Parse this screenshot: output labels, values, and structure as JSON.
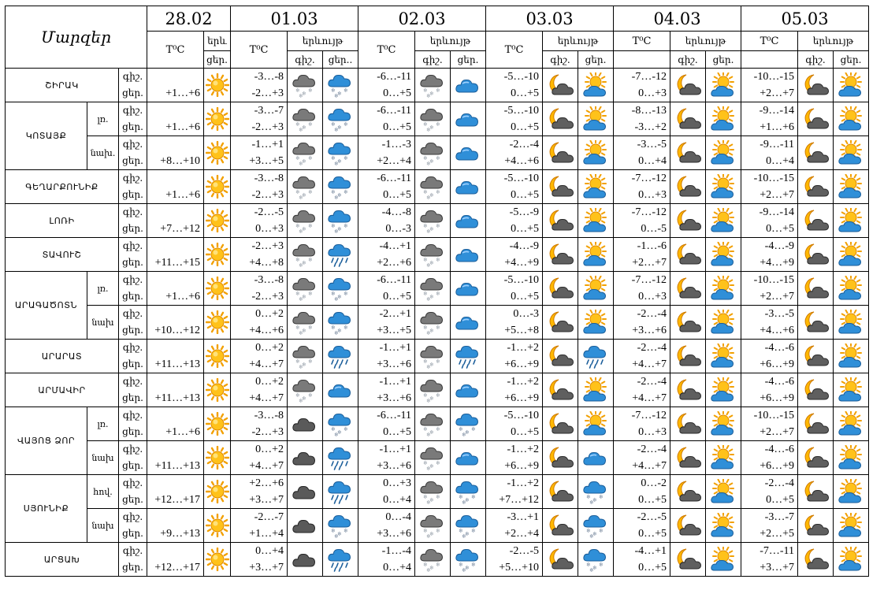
{
  "header": {
    "region_label": "Մարզեր",
    "dates": [
      "28.02",
      "01.03",
      "02.03",
      "03.03",
      "04.03",
      "05.03"
    ],
    "temp_label": "T⁰C",
    "phen_label": "երևույթ",
    "phen_label_short": "երև",
    "night": "գիշ.",
    "day": "ցեր.",
    "night_short": "գիշ.",
    "day_short": "ցեր.."
  },
  "row_labels": {
    "night": "գիշ.",
    "day": "ցեր."
  },
  "rows": [
    {
      "region": "ՇԻՐԱԿ",
      "sub": "",
      "d0": "+1…+6",
      "d1n": "-3…-8",
      "d1d": "-2…+3",
      "d2n": "-6…-11",
      "d2d": "0…+5",
      "d3n": "-5…-10",
      "d3d": "0…+5",
      "d4n": "-7…-12",
      "d4d": "0…+3",
      "d5n": "-10…-15",
      "d5d": "+2…+7"
    },
    {
      "region": "ԿՈՏԱՅՔ",
      "sub": "լռ.",
      "d0": "+1…+6",
      "d1n": "-3…-7",
      "d1d": "-2…+3",
      "d2n": "-6…-11",
      "d2d": "0…+5",
      "d3n": "-5…-10",
      "d3d": "0…+5",
      "d4n": "-8…-13",
      "d4d": "-3…+2",
      "d5n": "-9…-14",
      "d5d": "+1…+6"
    },
    {
      "region": "",
      "sub": "նախ.",
      "d0": "+8…+10",
      "d1n": "-1…+1",
      "d1d": "+3…+5",
      "d2n": "-1…-3",
      "d2d": "+2…+4",
      "d3n": "-2…-4",
      "d3d": "+4…+6",
      "d4n": "-3…-5",
      "d4d": "0…+4",
      "d5n": "-9…-11",
      "d5d": "0…+4"
    },
    {
      "region": "ԳԵՂԱՐՔՈՒՆԻՔ",
      "sub": "",
      "d0": "+1…+6",
      "d1n": "-3…-8",
      "d1d": "-2…+3",
      "d2n": "-6…-11",
      "d2d": "0…+5",
      "d3n": "-5…-10",
      "d3d": "0…+5",
      "d4n": "-7…-12",
      "d4d": "0…+3",
      "d5n": "-10…-15",
      "d5d": "+2…+7"
    },
    {
      "region": "ԼՈՌԻ",
      "sub": "",
      "d0": "+7…+12",
      "d1n": "-2…-5",
      "d1d": "0…+3",
      "d2n": "-4…-8",
      "d2d": "0…-3",
      "d3n": "-5…-9",
      "d3d": "0…+5",
      "d4n": "-7…-12",
      "d4d": "0…-5",
      "d5n": "-9…-14",
      "d5d": "0…+5"
    },
    {
      "region": "ՏԱՎՈՒՇ",
      "sub": "",
      "d0": "+11…+15",
      "d1n": "-2…+3",
      "d1d": "+4…+8",
      "d2n": "-4…+1",
      "d2d": "+2…+6",
      "d3n": "-4…-9",
      "d3d": "+4…+9",
      "d4n": "-1…-6",
      "d4d": "+2…+7",
      "d5n": "-4…-9",
      "d5d": "+4…+9"
    },
    {
      "region": "ԱՐԱԳԱԾՈՏՆ",
      "sub": "լռ.",
      "d0": "+1…+6",
      "d1n": "-3…-8",
      "d1d": "-2…+3",
      "d2n": "-6…-11",
      "d2d": "0…+5",
      "d3n": "-5…-10",
      "d3d": "0…+5",
      "d4n": "-7…-12",
      "d4d": "0…+3",
      "d5n": "-10…-15",
      "d5d": "+2…+7"
    },
    {
      "region": "",
      "sub": "նախ",
      "d0": "+10…+12",
      "d1n": "0…+2",
      "d1d": "+4…+6",
      "d2n": "-2…+1",
      "d2d": "+3…+5",
      "d3n": "0…-3",
      "d3d": "+5…+8",
      "d4n": "-2…-4",
      "d4d": "+3…+6",
      "d5n": "-3…-5",
      "d5d": "+4…+6"
    },
    {
      "region": "ԱՐԱՐԱՏ",
      "sub": "",
      "d0": "+11…+13",
      "d1n": "0…+2",
      "d1d": "+4…+7",
      "d2n": "-1…+1",
      "d2d": "+3…+6",
      "d3n": "-1…+2",
      "d3d": "+6…+9",
      "d4n": "-2…-4",
      "d4d": "+4…+7",
      "d5n": "-4…-6",
      "d5d": "+6…+9"
    },
    {
      "region": "ԱՐՄԱՎԻՐ",
      "sub": "",
      "d0": "+11…+13",
      "d1n": "0…+2",
      "d1d": "+4…+7",
      "d2n": "-1…+1",
      "d2d": "+3…+6",
      "d3n": "-1…+2",
      "d3d": "+6…+9",
      "d4n": "-2…-4",
      "d4d": "+4…+7",
      "d5n": "-4…-6",
      "d5d": "+6…+9"
    },
    {
      "region": "ՎԱՅՈՑ ՁՈՐ",
      "sub": "լռ.",
      "d0": "+1…+6",
      "d1n": "-3…-8",
      "d1d": "-2…+3",
      "d2n": "-6…-11",
      "d2d": "0…+5",
      "d3n": "-5…-10",
      "d3d": "0…+5",
      "d4n": "-7…-12",
      "d4d": "0…+3",
      "d5n": "-10…-15",
      "d5d": "+2…+7"
    },
    {
      "region": "",
      "sub": "նախ",
      "d0": "+11…+13",
      "d1n": "0…+2",
      "d1d": "+4…+7",
      "d2n": "-1…+1",
      "d2d": "+3…+6",
      "d3n": "-1…+2",
      "d3d": "+6…+9",
      "d4n": "-2…-4",
      "d4d": "+4…+7",
      "d5n": "-4…-6",
      "d5d": "+6…+9"
    },
    {
      "region": "ՍՅՈՒՆԻՔ",
      "sub": "հով.",
      "d0": "+12…+17",
      "d1n": "+2…+6",
      "d1d": "+3…+7",
      "d2n": "0…+3",
      "d2d": "0…+4",
      "d3n": "-1…+2",
      "d3d": "+7…+12",
      "d4n": "0…-2",
      "d4d": "0…+5",
      "d5n": "-2…-4",
      "d5d": "0…+5"
    },
    {
      "region": "",
      "sub": "նախ",
      "d0": "+9…+13",
      "d1n": "-2…-7",
      "d1d": "+1…+4",
      "d2n": "0…-4",
      "d2d": "+3…+6",
      "d3n": "-3…+1",
      "d3d": "+2…+4",
      "d4n": "-2…-5",
      "d4d": "0…+5",
      "d5n": "-3…-7",
      "d5d": "+2…+5"
    },
    {
      "region": "ԱՐՑԱԽ",
      "sub": "",
      "d0": "+12…+17",
      "d1n": "0…+4",
      "d1d": "+3…+7",
      "d2n": "-1…-4",
      "d2d": "0…+4",
      "d3n": "-2…-5",
      "d3d": "+5…+10",
      "d4n": "-4…+1",
      "d4d": "0…+5",
      "d5n": "-7…-11",
      "d5d": "+3…+7"
    }
  ],
  "icons": {
    "sun": "sun-icon",
    "moon_cloud": "moon-cloud-icon",
    "sun_cloud": "sun-cloud-icon",
    "cloud_snow": "cloud-snow-icon",
    "cloud_rain": "cloud-rain-icon",
    "cloud_dark": "dark-cloud-icon",
    "cloud_grey_snow": "grey-cloud-snow-icon",
    "cloud_blue": "blue-cloud-icon"
  }
}
